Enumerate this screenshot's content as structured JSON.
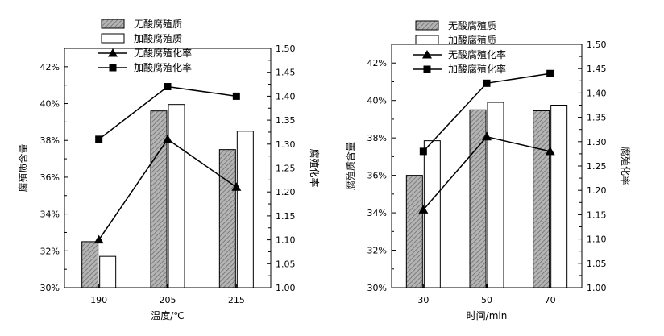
{
  "chart_data": [
    {
      "type": "bar",
      "categories": [
        "190",
        "205",
        "215"
      ],
      "xlabel": "温度/℃",
      "ylabel": "腐殖质含量",
      "y2label": "腐殖化率",
      "ylim": [
        30,
        43
      ],
      "y2lim": [
        1.0,
        1.5
      ],
      "yticks": [
        "30%",
        "32%",
        "34%",
        "36%",
        "38%",
        "40%",
        "42%"
      ],
      "y2ticks": [
        "1.00",
        "1.05",
        "1.10",
        "1.15",
        "1.20",
        "1.25",
        "1.30",
        "1.35",
        "1.40",
        "1.45",
        "1.50"
      ],
      "grid": false,
      "legend_position": "top-center",
      "series": [
        {
          "name": "无酸腐殖质",
          "kind": "bar",
          "axis": "left",
          "pattern": "hatched",
          "values": [
            32.5,
            39.6,
            37.5
          ]
        },
        {
          "name": "加酸腐殖质",
          "kind": "bar",
          "axis": "left",
          "pattern": "open",
          "values": [
            31.7,
            39.95,
            38.5
          ]
        },
        {
          "name": "无酸腐殖化率",
          "kind": "line",
          "axis": "right",
          "marker": "triangle",
          "values": [
            1.1,
            1.31,
            1.21
          ]
        },
        {
          "name": "加酸腐殖化率",
          "kind": "line",
          "axis": "right",
          "marker": "square",
          "values": [
            1.31,
            1.42,
            1.4
          ]
        }
      ]
    },
    {
      "type": "bar",
      "categories": [
        "30",
        "50",
        "70"
      ],
      "xlabel": "时间/min",
      "ylabel": "腐殖质含量",
      "y2label": "腐殖化率",
      "ylim": [
        30,
        43
      ],
      "y2lim": [
        1.0,
        1.5
      ],
      "yticks": [
        "30%",
        "32%",
        "34%",
        "36%",
        "38%",
        "40%",
        "42%"
      ],
      "y2ticks": [
        "1.00",
        "1.05",
        "1.10",
        "1.15",
        "1.20",
        "1.25",
        "1.30",
        "1.35",
        "1.40",
        "1.45",
        "1.50"
      ],
      "grid": false,
      "legend_position": "top-center",
      "series": [
        {
          "name": "无酸腐殖质",
          "kind": "bar",
          "axis": "left",
          "pattern": "hatched",
          "values": [
            36.0,
            39.5,
            39.45
          ]
        },
        {
          "name": "加酸腐殖质",
          "kind": "bar",
          "axis": "left",
          "pattern": "open",
          "values": [
            37.85,
            39.9,
            39.75
          ]
        },
        {
          "name": "无酸腐殖化率",
          "kind": "line",
          "axis": "right",
          "marker": "triangle",
          "values": [
            1.16,
            1.31,
            1.28
          ]
        },
        {
          "name": "加酸腐殖化率",
          "kind": "line",
          "axis": "right",
          "marker": "square",
          "values": [
            1.28,
            1.42,
            1.44
          ]
        }
      ]
    }
  ],
  "colors": {
    "axis": "#000000",
    "hatched_fill": "#a8a8a8",
    "open_fill": "#ffffff",
    "line": "#000000"
  }
}
